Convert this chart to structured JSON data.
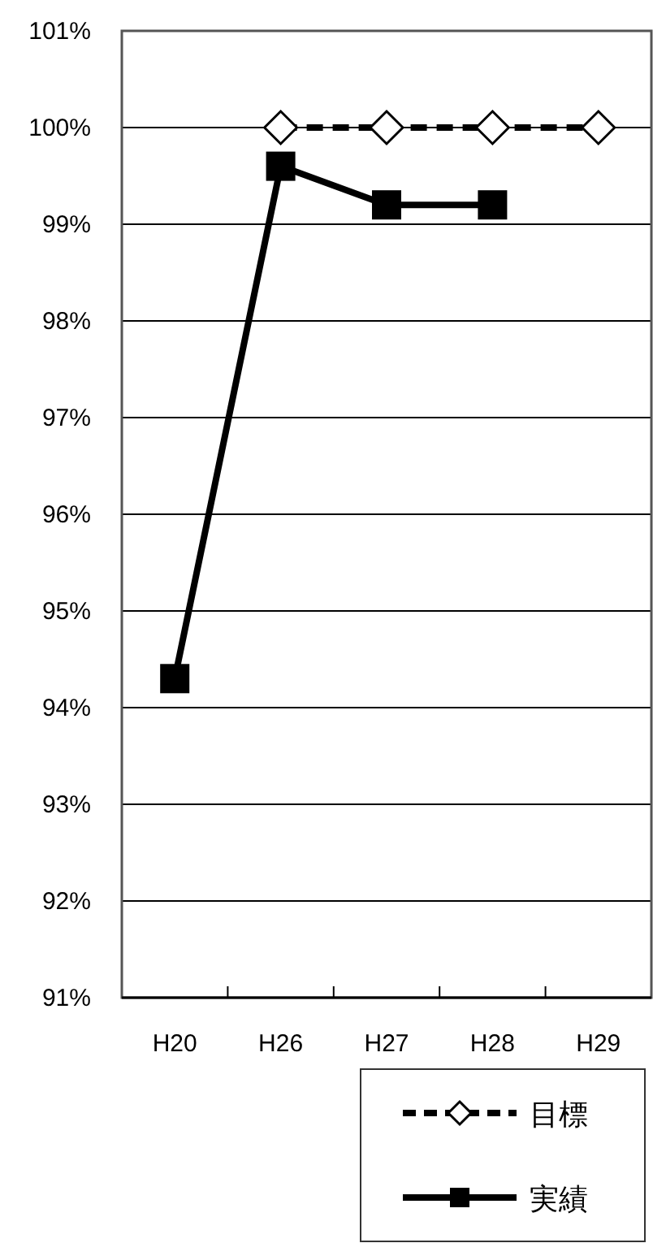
{
  "chart_data": {
    "type": "line",
    "categories": [
      "H20",
      "H26",
      "H27",
      "H28",
      "H29"
    ],
    "series": [
      {
        "name": "目標",
        "color": "#000000",
        "values": [
          null,
          100,
          100,
          100,
          100
        ],
        "marker": "diamond",
        "line_style": "dashed"
      },
      {
        "name": "実績",
        "color": "#000000",
        "values": [
          94.3,
          99.6,
          99.2,
          99.2,
          null
        ],
        "marker": "square",
        "line_style": "solid"
      }
    ],
    "ylim": [
      91,
      101
    ],
    "yticks": [
      {
        "value": 91,
        "label": "91%"
      },
      {
        "value": 92,
        "label": "92%"
      },
      {
        "value": 93,
        "label": "93%"
      },
      {
        "value": 94,
        "label": "94%"
      },
      {
        "value": 95,
        "label": "95%"
      },
      {
        "value": 96,
        "label": "96%"
      },
      {
        "value": 97,
        "label": "97%"
      },
      {
        "value": 98,
        "label": "98%"
      },
      {
        "value": 99,
        "label": "99%"
      },
      {
        "value": 100,
        "label": "100%"
      },
      {
        "value": 101,
        "label": "101%"
      }
    ],
    "grid": "y",
    "legend": "bottom right"
  }
}
